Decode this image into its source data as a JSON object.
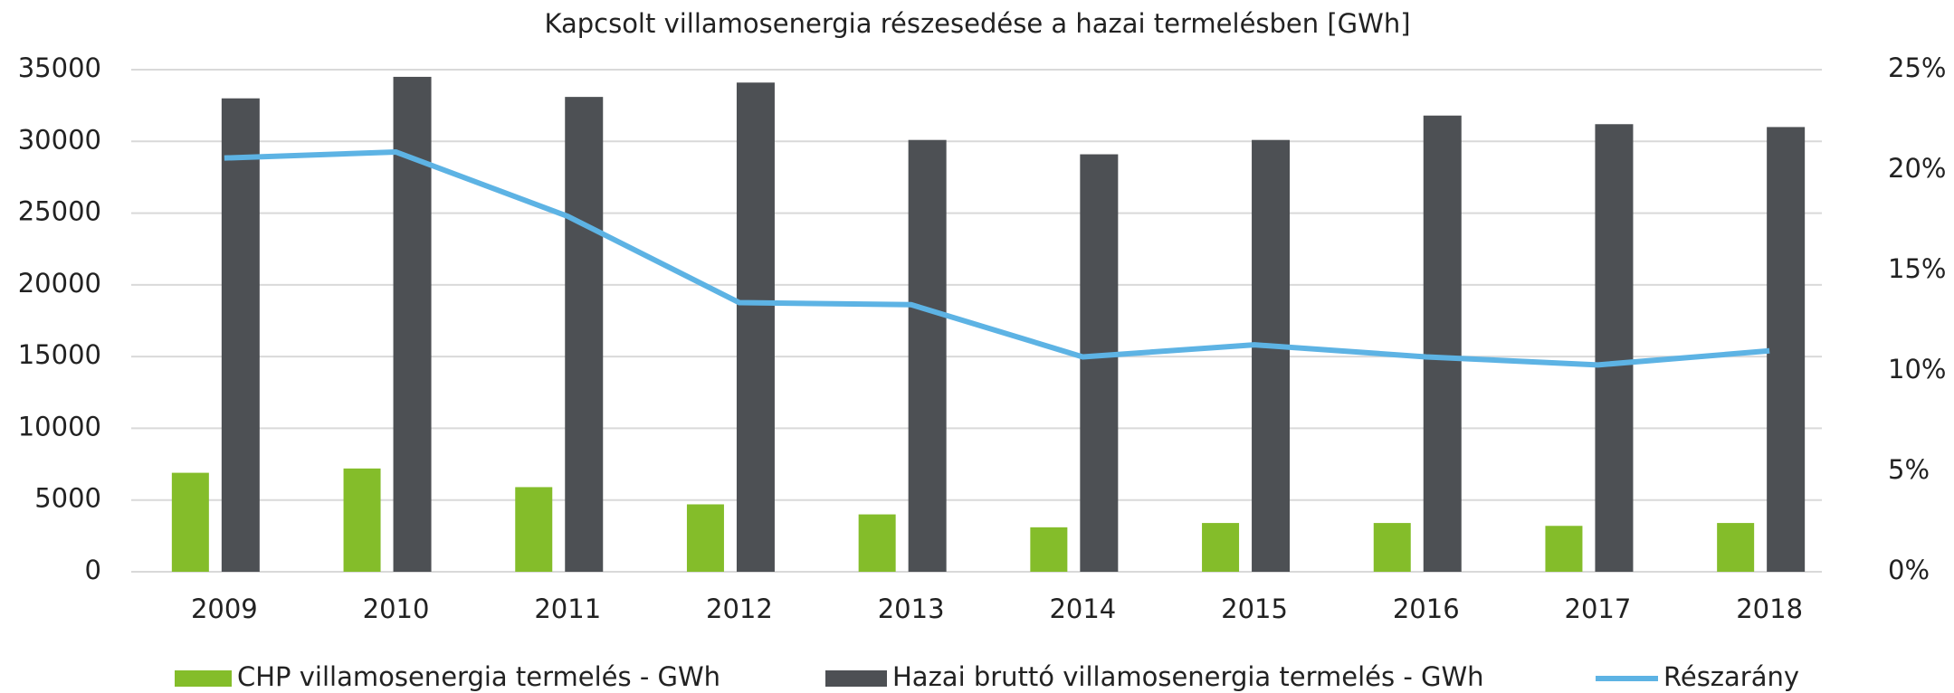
{
  "chart_data": {
    "type": "bar",
    "title": "Kapcsolt villamosenergia részesedése a hazai termelésben [GWh]",
    "categories": [
      "2009",
      "2010",
      "2011",
      "2012",
      "2013",
      "2014",
      "2015",
      "2016",
      "2017",
      "2018"
    ],
    "series": [
      {
        "name": "CHP villamosenergia termelés - GWh",
        "color": "#84bd2a",
        "type": "bar",
        "values": [
          6900,
          7200,
          5900,
          4700,
          4000,
          3100,
          3400,
          3400,
          3200,
          3400
        ]
      },
      {
        "name": "Hazai bruttó villamosenergia termelés - GWh",
        "color": "#4d5054",
        "type": "bar",
        "values": [
          33000,
          34500,
          33100,
          34100,
          30100,
          29100,
          30100,
          31800,
          31200,
          31000
        ]
      },
      {
        "name": "Részarány",
        "color": "#5db3e4",
        "type": "line",
        "axis": "y2",
        "values": [
          20.6,
          20.9,
          17.7,
          13.4,
          13.3,
          10.7,
          11.3,
          10.7,
          10.3,
          11.0
        ]
      }
    ],
    "ylim": [
      0,
      35000
    ],
    "yticks": [
      0,
      5000,
      10000,
      15000,
      20000,
      25000,
      30000,
      35000
    ],
    "y2lim": [
      0,
      25
    ],
    "y2ticks": [
      {
        "value": 0,
        "label": "0%"
      },
      {
        "value": 5,
        "label": "5%"
      },
      {
        "value": 10,
        "label": "10%"
      },
      {
        "value": 15,
        "label": "15%"
      },
      {
        "value": 20,
        "label": "20%"
      },
      {
        "value": 25,
        "label": "25%"
      }
    ],
    "grid": true,
    "legend": "bottom"
  }
}
